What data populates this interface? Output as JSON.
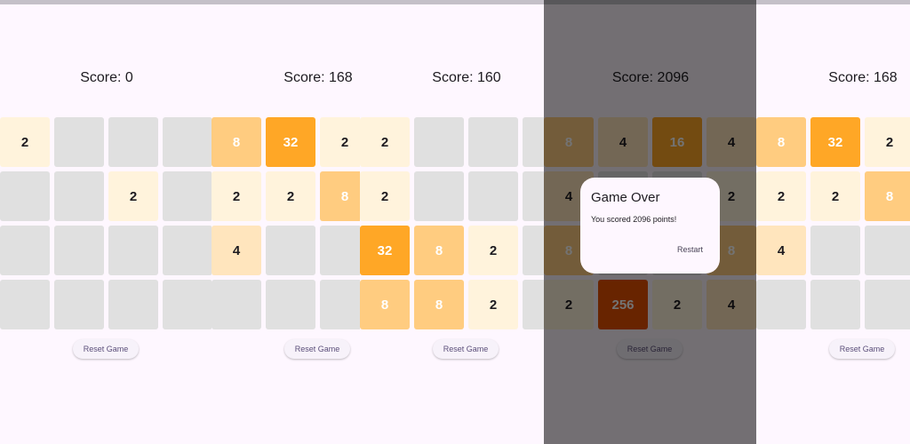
{
  "panels": [
    {
      "score": "Score: 0",
      "tiles": [
        [
          2,
          null,
          null,
          null
        ],
        [
          null,
          null,
          2,
          null
        ],
        [
          null,
          null,
          null,
          null
        ],
        [
          null,
          null,
          null,
          null
        ]
      ],
      "button": "Reset Game"
    },
    {
      "score": "Score: 168",
      "tiles": [
        [
          8,
          32,
          2
        ],
        [
          2,
          2,
          8
        ],
        [
          4,
          null,
          null
        ],
        [
          null,
          null,
          null
        ]
      ],
      "button": "Reset Game"
    },
    {
      "score": "Score: 160",
      "tiles": [
        [
          2,
          null,
          null,
          null
        ],
        [
          2,
          null,
          null,
          null
        ],
        [
          32,
          8,
          2,
          null
        ],
        [
          8,
          8,
          2,
          null
        ]
      ],
      "button": "Reset Game"
    },
    {
      "score": "Score: 2096",
      "tiles": [
        [
          8,
          4,
          16,
          4
        ],
        [
          4,
          null,
          null,
          2
        ],
        [
          8,
          null,
          null,
          8
        ],
        [
          2,
          256,
          2,
          4
        ]
      ],
      "button": "Reset Game",
      "dialog": {
        "title": "Game Over",
        "message": "You scored 2096 points!",
        "action": "Restart"
      }
    },
    {
      "score": "Score: 168",
      "tiles": [
        [
          8,
          32,
          2
        ],
        [
          2,
          2,
          8
        ],
        [
          4,
          null,
          null
        ],
        [
          null,
          null,
          null
        ]
      ],
      "button": "Reset Game"
    }
  ]
}
